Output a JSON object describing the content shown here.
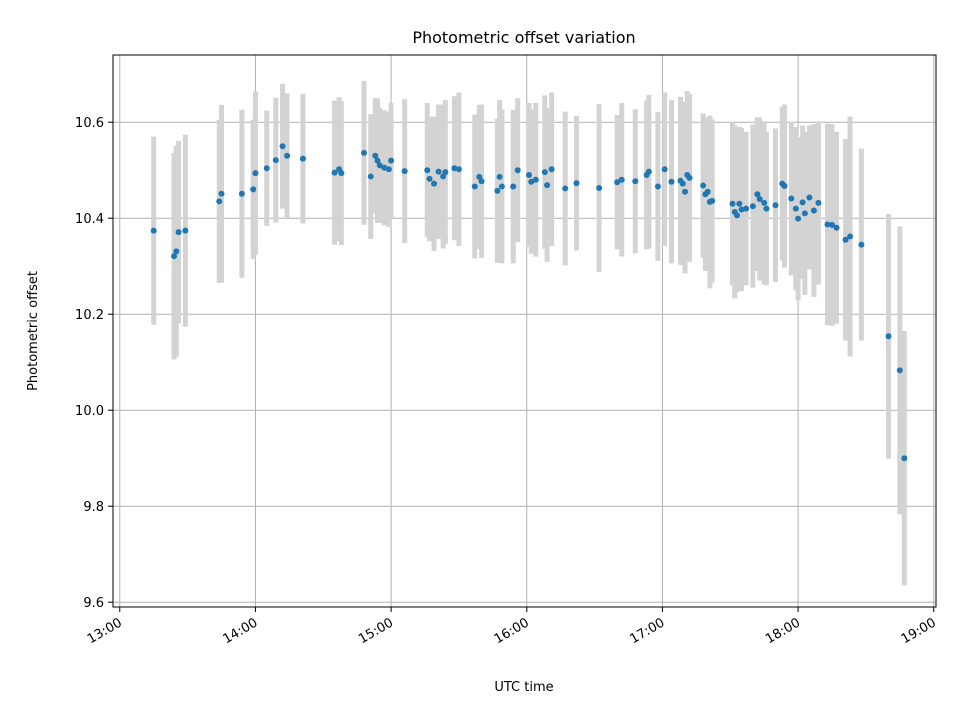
{
  "chart_data": {
    "type": "scatter",
    "title": "Photometric offset variation",
    "xlabel": "UTC time",
    "ylabel": "Photometric offset",
    "x_unit": "hours UTC",
    "xlim": [
      "12:57",
      "19:01"
    ],
    "ylim": [
      9.59,
      10.74
    ],
    "x_ticks": [
      "13:00",
      "14:00",
      "15:00",
      "16:00",
      "17:00",
      "18:00",
      "19:00"
    ],
    "y_ticks": [
      "9.6",
      "9.8",
      "10.0",
      "10.2",
      "10.4",
      "10.6"
    ],
    "grid": true,
    "legend": "none",
    "colors": {
      "points": "#1f77b4",
      "errorbars": "#d3d3d3",
      "grid": "#b0b0b0"
    },
    "points": [
      [
        "13:15",
        10.374,
        0.196
      ],
      [
        "13:24",
        10.321,
        0.215
      ],
      [
        "13:25",
        10.331,
        0.22
      ],
      [
        "13:26",
        10.371,
        0.19
      ],
      [
        "13:29",
        10.374,
        0.2
      ],
      [
        "13:44",
        10.435,
        0.17
      ],
      [
        "13:45",
        10.451,
        0.185
      ],
      [
        "13:54",
        10.451,
        0.175
      ],
      [
        "13:59",
        10.46,
        0.145
      ],
      [
        "14:00",
        10.494,
        0.17
      ],
      [
        "14:05",
        10.504,
        0.12
      ],
      [
        "14:09",
        10.521,
        0.13
      ],
      [
        "14:12",
        10.55,
        0.13
      ],
      [
        "14:14",
        10.53,
        0.13
      ],
      [
        "14:21",
        10.524,
        0.135
      ],
      [
        "14:35",
        10.495,
        0.15
      ],
      [
        "14:37",
        10.502,
        0.15
      ],
      [
        "14:38",
        10.494,
        0.15
      ],
      [
        "14:48",
        10.536,
        0.15
      ],
      [
        "14:51",
        10.487,
        0.13
      ],
      [
        "14:53",
        10.53,
        0.12
      ],
      [
        "14:54",
        10.52,
        0.13
      ],
      [
        "14:55",
        10.51,
        0.12
      ],
      [
        "14:57",
        10.505,
        0.12
      ],
      [
        "14:59",
        10.502,
        0.12
      ],
      [
        "15:00",
        10.52,
        0.12
      ],
      [
        "15:06",
        10.498,
        0.15
      ],
      [
        "15:16",
        10.5,
        0.14
      ],
      [
        "15:17",
        10.482,
        0.13
      ],
      [
        "15:19",
        10.472,
        0.14
      ],
      [
        "15:21",
        10.497,
        0.14
      ],
      [
        "15:23",
        10.487,
        0.15
      ],
      [
        "15:24",
        10.496,
        0.15
      ],
      [
        "15:28",
        10.504,
        0.15
      ],
      [
        "15:30",
        10.502,
        0.16
      ],
      [
        "15:37",
        10.466,
        0.15
      ],
      [
        "15:39",
        10.486,
        0.15
      ],
      [
        "15:40",
        10.477,
        0.16
      ],
      [
        "15:47",
        10.457,
        0.15
      ],
      [
        "15:48",
        10.486,
        0.16
      ],
      [
        "15:49",
        10.466,
        0.16
      ],
      [
        "15:54",
        10.466,
        0.16
      ],
      [
        "15:56",
        10.5,
        0.15
      ],
      [
        "16:01",
        10.49,
        0.15
      ],
      [
        "16:02",
        10.476,
        0.15
      ],
      [
        "16:04",
        10.48,
        0.16
      ],
      [
        "16:08",
        10.496,
        0.16
      ],
      [
        "16:09",
        10.469,
        0.16
      ],
      [
        "16:11",
        10.502,
        0.16
      ],
      [
        "16:17",
        10.462,
        0.16
      ],
      [
        "16:22",
        10.473,
        0.14
      ],
      [
        "16:32",
        10.463,
        0.175
      ],
      [
        "16:40",
        10.475,
        0.14
      ],
      [
        "16:42",
        10.48,
        0.16
      ],
      [
        "16:48",
        10.477,
        0.15
      ],
      [
        "16:53",
        10.49,
        0.155
      ],
      [
        "16:54",
        10.497,
        0.16
      ],
      [
        "16:58",
        10.466,
        0.155
      ],
      [
        "17:01",
        10.502,
        0.16
      ],
      [
        "17:04",
        10.476,
        0.17
      ],
      [
        "17:08",
        10.478,
        0.175
      ],
      [
        "17:09",
        10.472,
        0.17
      ],
      [
        "17:10",
        10.455,
        0.17
      ],
      [
        "17:11",
        10.49,
        0.175
      ],
      [
        "17:12",
        10.484,
        0.175
      ],
      [
        "17:18",
        10.468,
        0.15
      ],
      [
        "17:19",
        10.45,
        0.16
      ],
      [
        "17:20",
        10.455,
        0.155
      ],
      [
        "17:21",
        10.434,
        0.18
      ],
      [
        "17:22",
        10.436,
        0.17
      ],
      [
        "17:31",
        10.43,
        0.17
      ],
      [
        "17:32",
        10.413,
        0.18
      ],
      [
        "17:33",
        10.406,
        0.16
      ],
      [
        "17:34",
        10.43,
        0.16
      ],
      [
        "17:35",
        10.418,
        0.17
      ],
      [
        "17:37",
        10.42,
        0.16
      ],
      [
        "17:40",
        10.425,
        0.17
      ],
      [
        "17:42",
        10.45,
        0.16
      ],
      [
        "17:43",
        10.44,
        0.17
      ],
      [
        "17:45",
        10.432,
        0.17
      ],
      [
        "17:46",
        10.42,
        0.16
      ],
      [
        "17:50",
        10.427,
        0.16
      ],
      [
        "17:53",
        10.472,
        0.16
      ],
      [
        "17:54",
        10.467,
        0.17
      ],
      [
        "17:57",
        10.441,
        0.16
      ],
      [
        "17:59",
        10.42,
        0.17
      ],
      [
        "18:00",
        10.399,
        0.17
      ],
      [
        "18:02",
        10.433,
        0.16
      ],
      [
        "18:03",
        10.41,
        0.17
      ],
      [
        "18:05",
        10.443,
        0.15
      ],
      [
        "18:07",
        10.416,
        0.18
      ],
      [
        "18:09",
        10.432,
        0.17
      ],
      [
        "18:13",
        10.387,
        0.21
      ],
      [
        "18:15",
        10.386,
        0.21
      ],
      [
        "18:17",
        10.38,
        0.2
      ],
      [
        "18:21",
        10.355,
        0.21
      ],
      [
        "18:23",
        10.362,
        0.25
      ],
      [
        "18:28",
        10.345,
        0.2
      ],
      [
        "18:40",
        10.154,
        0.255
      ],
      [
        "18:45",
        10.083,
        0.3
      ],
      [
        "18:47",
        9.9,
        0.265
      ]
    ]
  }
}
